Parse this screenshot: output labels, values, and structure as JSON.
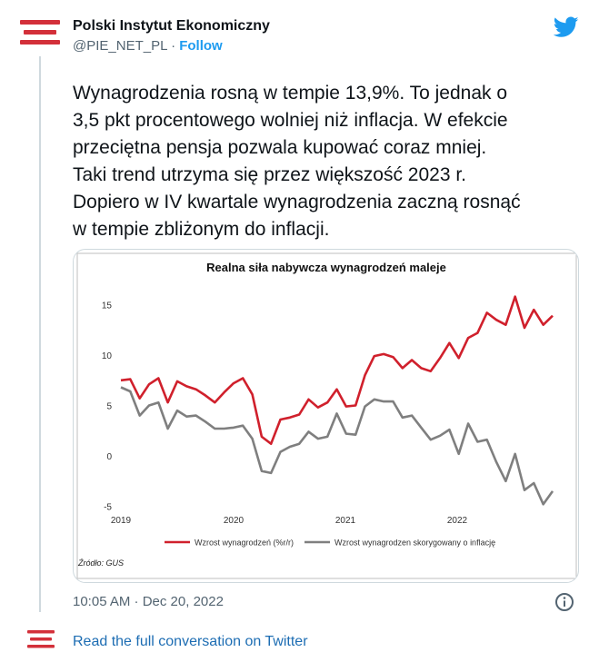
{
  "author": {
    "name": "Polski Instytut Ekonomiczny",
    "handle": "@PIE_NET_PL",
    "separator": "·",
    "follow_label": "Follow"
  },
  "tweet": {
    "text": "Wynagrodzenia rosną w tempie 13,9%. To jednak o\n3,5 pkt procentowego wolniej niż inflacja. W efekcie\nprzeciętna pensja pozwala kupować coraz mniej.\nTaki trend utrzyma się przez większość 2023 r.\nDopiero w IV kwartale wynagrodzenia zaczną rosnąć\nw tempie zbliżonym do inflacji.",
    "timestamp": "10:05 AM · Dec 20, 2022",
    "read_more": "Read the full conversation on Twitter"
  },
  "colors": {
    "brand_red": "#d3303a",
    "twitter_blue": "#1d9bf0",
    "series_red": "#d0202c",
    "series_gray": "#7f7f7f"
  },
  "icons": {
    "logo": "pie-logo-icon",
    "bird": "twitter-bird-icon",
    "info": "info-icon"
  },
  "chart_data": {
    "type": "line",
    "title": "Realna siła nabywcza wynagrodzeń maleje",
    "source": "Źródło: GUS",
    "x_ticks": [
      "2019",
      "2020",
      "2021",
      "2022"
    ],
    "y_ticks": [
      15,
      10,
      5,
      0,
      -5
    ],
    "ylim": [
      -6,
      17
    ],
    "grid": false,
    "legend_position": "bottom",
    "series": [
      {
        "name": "Wzrost wynagrodzeń (%r/r)",
        "color": "#d0202c",
        "values": [
          7.5,
          7.6,
          5.7,
          7.1,
          7.7,
          5.3,
          7.4,
          6.9,
          6.6,
          6.0,
          5.3,
          6.3,
          7.2,
          7.7,
          6.1,
          1.9,
          1.2,
          3.6,
          3.8,
          4.1,
          5.6,
          4.8,
          5.3,
          6.6,
          4.9,
          5.0,
          8.0,
          9.9,
          10.1,
          9.8,
          8.7,
          9.5,
          8.7,
          8.4,
          9.7,
          11.2,
          9.7,
          11.7,
          12.2,
          14.2,
          13.5,
          13.0,
          15.8,
          12.7,
          14.5,
          13.0,
          13.9
        ]
      },
      {
        "name": "Wzrost wynagrodzen skorygowany o inflację",
        "color": "#7f7f7f",
        "values": [
          6.8,
          6.4,
          4.0,
          5.0,
          5.3,
          2.7,
          4.5,
          3.9,
          4.0,
          3.4,
          2.7,
          2.7,
          2.8,
          3.0,
          1.7,
          -1.5,
          -1.7,
          0.4,
          0.9,
          1.2,
          2.4,
          1.7,
          1.9,
          4.2,
          2.2,
          2.1,
          4.9,
          5.6,
          5.4,
          5.4,
          3.8,
          4.0,
          2.8,
          1.6,
          2.0,
          2.6,
          0.2,
          3.2,
          1.4,
          1.6,
          -0.6,
          -2.5,
          0.2,
          -3.4,
          -2.7,
          -4.8,
          -3.5
        ]
      }
    ]
  }
}
